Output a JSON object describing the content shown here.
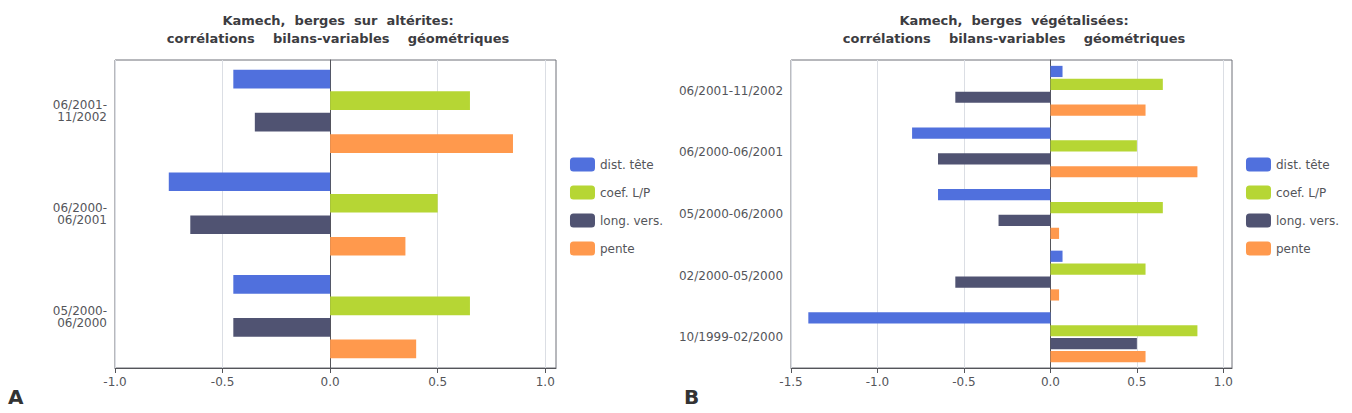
{
  "chart_data": [
    {
      "type": "bar",
      "orientation": "horizontal",
      "title": "Kamech,  berges  sur  altérites:\ncorrélations    bilans-variables    géométriques",
      "categories": [
        "06/2001-\n11/2002",
        "06/2000-\n06/2001",
        "05/2000-\n06/2000"
      ],
      "series": [
        {
          "name": "dist. tête",
          "values": [
            -0.45,
            -0.75,
            -0.45
          ]
        },
        {
          "name": "coef. L/P",
          "values": [
            0.65,
            0.5,
            0.65
          ]
        },
        {
          "name": "long. vers.",
          "values": [
            -0.35,
            -0.65,
            -0.45
          ]
        },
        {
          "name": "pente",
          "values": [
            0.85,
            0.35,
            0.4
          ]
        }
      ],
      "xlim": [
        -1.0,
        1.05
      ],
      "xticks": [
        {
          "value": -1.0,
          "label": "-1.0"
        },
        -0.5,
        {
          "value": 0.0,
          "label": "0.0"
        },
        0.5,
        {
          "value": 1.0,
          "label": "1.0"
        }
      ],
      "grid": true,
      "legend": "right",
      "annotations": [
        "A"
      ]
    },
    {
      "type": "bar",
      "orientation": "horizontal",
      "title": "Kamech,  berges  végétalisées:\ncorrélations    bilans-variables    géométriques",
      "categories": [
        "06/2001-11/2002",
        "06/2000-06/2001",
        "05/2000-06/2000",
        "02/2000-05/2000",
        "10/1999-02/2000"
      ],
      "series": [
        {
          "name": "dist. tête",
          "values": [
            0.07,
            -0.8,
            -0.65,
            0.07,
            -1.4
          ]
        },
        {
          "name": "coef. L/P",
          "values": [
            0.65,
            0.5,
            0.65,
            0.55,
            0.85
          ]
        },
        {
          "name": "long. vers.",
          "values": [
            -0.55,
            -0.65,
            -0.3,
            -0.55,
            0.5
          ]
        },
        {
          "name": "pente",
          "values": [
            0.55,
            0.85,
            0.05,
            0.05,
            0.55
          ]
        }
      ],
      "xlim": [
        -1.5,
        1.05
      ],
      "xticks": [
        -1.5,
        {
          "value": -1.0,
          "label": "-1.0"
        },
        -0.5,
        {
          "value": 0.0,
          "label": "0.0"
        },
        0.5,
        {
          "value": 1.0,
          "label": "1.0"
        }
      ],
      "grid": true,
      "legend": "right",
      "annotations": [
        "B"
      ]
    }
  ]
}
